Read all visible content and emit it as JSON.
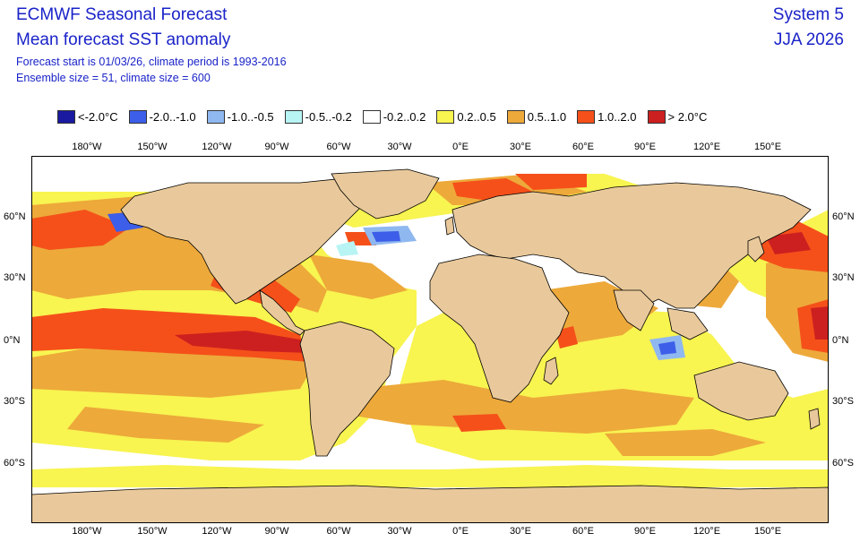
{
  "header": {
    "title1": "ECMWF Seasonal Forecast",
    "title2": "Mean forecast SST anomaly",
    "system": "System 5",
    "period": "JJA 2026",
    "sub1": "Forecast start is 01/03/26, climate period is 1993-2016",
    "sub2": "Ensemble size = 51, climate size = 600"
  },
  "legend": [
    {
      "label": "<-2.0°C",
      "color": "#1a1aa0"
    },
    {
      "label": "-2.0..-1.0",
      "color": "#3d5ee8"
    },
    {
      "label": "-1.0..-0.5",
      "color": "#8fb8f0"
    },
    {
      "label": "-0.5..-0.2",
      "color": "#b8f4f4"
    },
    {
      "label": "-0.2..0.2",
      "color": "#ffffff"
    },
    {
      "label": "0.2..0.5",
      "color": "#f8f450"
    },
    {
      "label": "0.5..1.0",
      "color": "#eda93a"
    },
    {
      "label": "1.0..2.0",
      "color": "#f5501a"
    },
    {
      "label": "> 2.0°C",
      "color": "#cc2020"
    }
  ],
  "lon_labels": [
    "180°W",
    "150°W",
    "120°W",
    "90°W",
    "60°W",
    "30°W",
    "0°E",
    "30°E",
    "60°E",
    "90°E",
    "120°E",
    "150°E"
  ],
  "lat_labels": [
    "60°N",
    "30°N",
    "0°N",
    "30°S",
    "60°S"
  ],
  "colors": {
    "land": "#e9c99b",
    "title": "#1a23c8",
    "coast": "#000000"
  }
}
